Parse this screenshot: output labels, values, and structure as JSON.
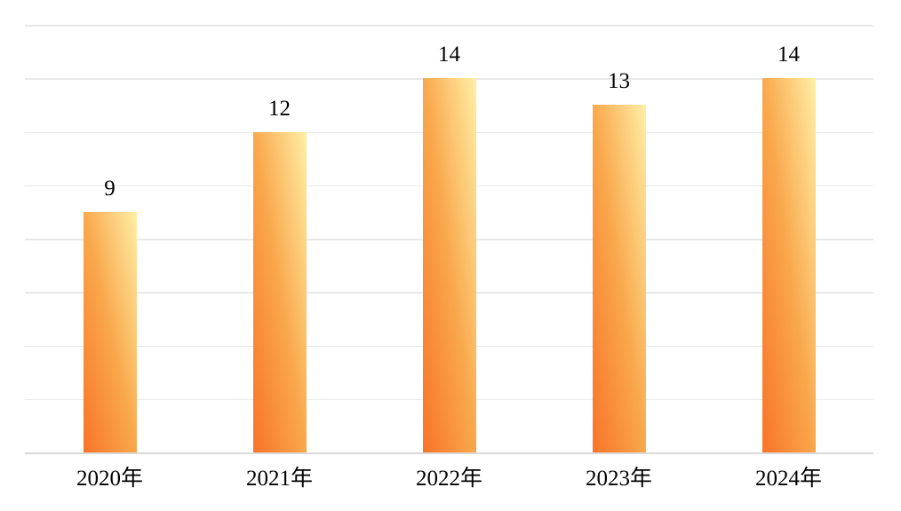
{
  "chart_data": {
    "type": "bar",
    "categories": [
      "2020年",
      "2021年",
      "2022年",
      "2023年",
      "2024年"
    ],
    "values": [
      9,
      12,
      14,
      13,
      14
    ],
    "title": "",
    "xlabel": "",
    "ylabel": "",
    "ylim": [
      0,
      16
    ],
    "gridline_interval": 2,
    "grid": true,
    "legend": false,
    "y_axis_tick_labels_visible": false,
    "data_labels_visible": true,
    "bar_gradient": [
      "#f87429",
      "#f9a84c",
      "#ffefa7"
    ]
  },
  "colors": {
    "background": "#ffffff",
    "gridline": "#e9e9e9",
    "axis_line": "#d9d9d9",
    "label_text": "#000000"
  }
}
